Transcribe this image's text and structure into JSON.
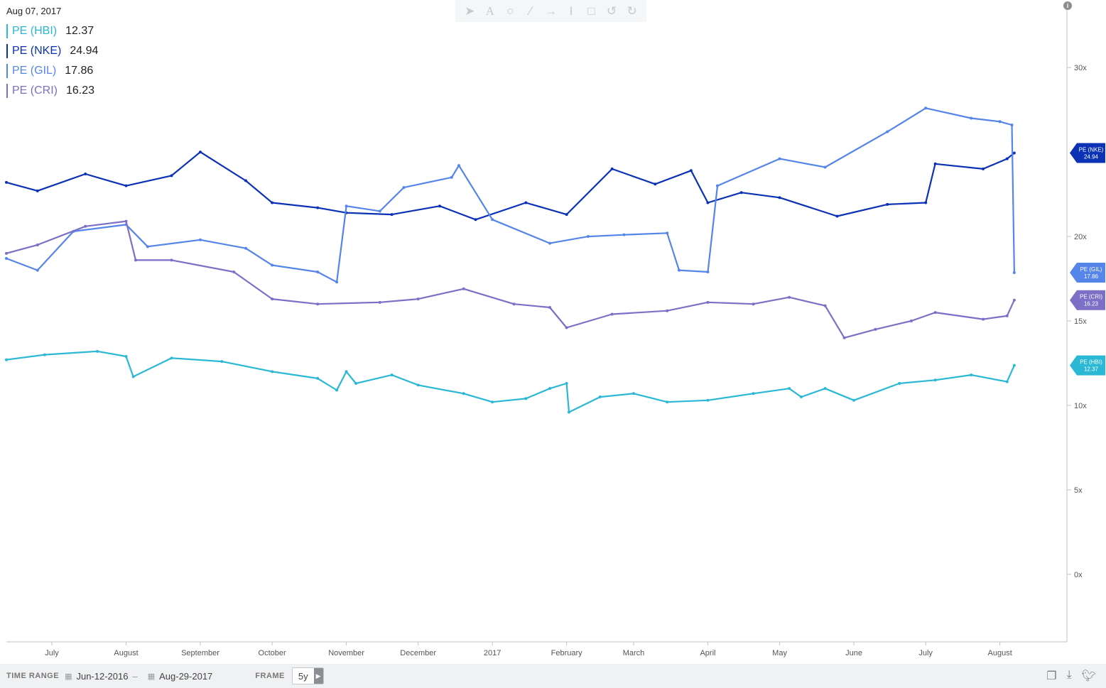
{
  "header": {
    "date": "Aug 07, 2017",
    "legend": [
      {
        "name": "PE (HBI)",
        "value": "12.37",
        "color": "#2ab8d4"
      },
      {
        "name": "PE (NKE)",
        "value": "24.94",
        "color": "#0b32b4"
      },
      {
        "name": "PE (GIL)",
        "value": "17.86",
        "color": "#5585e8"
      },
      {
        "name": "PE (CRI)",
        "value": "16.23",
        "color": "#7b6fc6"
      }
    ]
  },
  "toolbar": {
    "tools": [
      "pointer-icon",
      "text-icon",
      "circle-icon",
      "pencil-icon",
      "arrow-icon",
      "cursor-text-icon",
      "trash-icon",
      "undo-icon",
      "redo-icon"
    ],
    "info": "i"
  },
  "chart_data": {
    "type": "line",
    "x_axis": {
      "range": [
        "2016-06-12",
        "2017-08-29"
      ],
      "tick_labels": [
        "July",
        "August",
        "September",
        "October",
        "November",
        "December",
        "2017",
        "February",
        "March",
        "April",
        "May",
        "June",
        "July",
        "August"
      ]
    },
    "y_axis": {
      "range": [
        -4,
        34
      ],
      "ticks": [
        0,
        5,
        10,
        15,
        20,
        30
      ],
      "tick_labels": [
        "0x",
        "5x",
        "10x",
        "15x",
        "20x",
        "30x"
      ]
    },
    "grid": false,
    "legend_position": "top-left",
    "series": [
      {
        "name": "PE (HBI)",
        "color": "#2ab8d4",
        "end_value": "12.37",
        "points": [
          [
            "2016-06-12",
            12.7
          ],
          [
            "2016-06-28",
            13.0
          ],
          [
            "2016-07-20",
            13.2
          ],
          [
            "2016-08-01",
            12.9
          ],
          [
            "2016-08-04",
            11.7
          ],
          [
            "2016-08-20",
            12.8
          ],
          [
            "2016-09-10",
            12.6
          ],
          [
            "2016-10-01",
            12.0
          ],
          [
            "2016-10-20",
            11.6
          ],
          [
            "2016-10-28",
            10.9
          ],
          [
            "2016-11-01",
            12.0
          ],
          [
            "2016-11-05",
            11.3
          ],
          [
            "2016-11-20",
            11.8
          ],
          [
            "2016-12-01",
            11.2
          ],
          [
            "2016-12-20",
            10.7
          ],
          [
            "2017-01-01",
            10.2
          ],
          [
            "2017-01-15",
            10.4
          ],
          [
            "2017-01-25",
            11.0
          ],
          [
            "2017-02-01",
            11.3
          ],
          [
            "2017-02-02",
            9.6
          ],
          [
            "2017-02-15",
            10.5
          ],
          [
            "2017-03-01",
            10.7
          ],
          [
            "2017-03-15",
            10.2
          ],
          [
            "2017-04-01",
            10.3
          ],
          [
            "2017-04-20",
            10.7
          ],
          [
            "2017-05-05",
            11.0
          ],
          [
            "2017-05-10",
            10.5
          ],
          [
            "2017-05-20",
            11.0
          ],
          [
            "2017-06-01",
            10.3
          ],
          [
            "2017-06-20",
            11.3
          ],
          [
            "2017-07-05",
            11.5
          ],
          [
            "2017-07-20",
            11.8
          ],
          [
            "2017-08-04",
            11.4
          ],
          [
            "2017-08-07",
            12.37
          ]
        ]
      },
      {
        "name": "PE (NKE)",
        "color": "#0b32b4",
        "end_value": "24.94",
        "points": [
          [
            "2016-06-12",
            23.2
          ],
          [
            "2016-06-25",
            22.7
          ],
          [
            "2016-07-15",
            23.7
          ],
          [
            "2016-08-01",
            23.0
          ],
          [
            "2016-08-20",
            23.6
          ],
          [
            "2016-09-01",
            25.0
          ],
          [
            "2016-09-20",
            23.3
          ],
          [
            "2016-10-01",
            22.0
          ],
          [
            "2016-10-20",
            21.7
          ],
          [
            "2016-11-01",
            21.4
          ],
          [
            "2016-11-20",
            21.3
          ],
          [
            "2016-12-10",
            21.8
          ],
          [
            "2016-12-25",
            21.0
          ],
          [
            "2017-01-15",
            22.0
          ],
          [
            "2017-02-01",
            21.3
          ],
          [
            "2017-02-20",
            24.0
          ],
          [
            "2017-03-10",
            23.1
          ],
          [
            "2017-03-25",
            23.9
          ],
          [
            "2017-04-01",
            22.0
          ],
          [
            "2017-04-15",
            22.6
          ],
          [
            "2017-05-01",
            22.3
          ],
          [
            "2017-05-25",
            21.2
          ],
          [
            "2017-06-15",
            21.9
          ],
          [
            "2017-07-01",
            22.0
          ],
          [
            "2017-07-05",
            24.3
          ],
          [
            "2017-07-25",
            24.0
          ],
          [
            "2017-08-04",
            24.6
          ],
          [
            "2017-08-07",
            24.94
          ]
        ]
      },
      {
        "name": "PE (GIL)",
        "color": "#5585e8",
        "end_value": "17.86",
        "points": [
          [
            "2016-06-12",
            18.7
          ],
          [
            "2016-06-25",
            18.0
          ],
          [
            "2016-07-10",
            20.3
          ],
          [
            "2016-08-01",
            20.7
          ],
          [
            "2016-08-10",
            19.4
          ],
          [
            "2016-09-01",
            19.8
          ],
          [
            "2016-09-20",
            19.3
          ],
          [
            "2016-10-01",
            18.3
          ],
          [
            "2016-10-20",
            17.9
          ],
          [
            "2016-10-28",
            17.3
          ],
          [
            "2016-11-01",
            21.8
          ],
          [
            "2016-11-15",
            21.5
          ],
          [
            "2016-11-25",
            22.9
          ],
          [
            "2016-12-15",
            23.5
          ],
          [
            "2016-12-18",
            24.2
          ],
          [
            "2017-01-01",
            21.0
          ],
          [
            "2017-01-25",
            19.6
          ],
          [
            "2017-02-10",
            20.0
          ],
          [
            "2017-02-25",
            20.1
          ],
          [
            "2017-03-15",
            20.2
          ],
          [
            "2017-03-20",
            18.0
          ],
          [
            "2017-04-01",
            17.9
          ],
          [
            "2017-04-05",
            23.0
          ],
          [
            "2017-05-01",
            24.6
          ],
          [
            "2017-05-20",
            24.1
          ],
          [
            "2017-06-15",
            26.2
          ],
          [
            "2017-07-01",
            27.6
          ],
          [
            "2017-07-20",
            27.0
          ],
          [
            "2017-08-01",
            26.8
          ],
          [
            "2017-08-06",
            26.6
          ],
          [
            "2017-08-07",
            17.86
          ]
        ]
      },
      {
        "name": "PE (CRI)",
        "color": "#7b6fc6",
        "end_value": "16.23",
        "points": [
          [
            "2016-06-12",
            19.0
          ],
          [
            "2016-06-25",
            19.5
          ],
          [
            "2016-07-15",
            20.6
          ],
          [
            "2016-08-01",
            20.9
          ],
          [
            "2016-08-05",
            18.6
          ],
          [
            "2016-08-20",
            18.6
          ],
          [
            "2016-09-15",
            17.9
          ],
          [
            "2016-10-01",
            16.3
          ],
          [
            "2016-10-20",
            16.0
          ],
          [
            "2016-11-15",
            16.1
          ],
          [
            "2016-12-01",
            16.3
          ],
          [
            "2016-12-20",
            16.9
          ],
          [
            "2017-01-10",
            16.0
          ],
          [
            "2017-01-25",
            15.8
          ],
          [
            "2017-02-01",
            14.6
          ],
          [
            "2017-02-20",
            15.4
          ],
          [
            "2017-03-15",
            15.6
          ],
          [
            "2017-04-01",
            16.1
          ],
          [
            "2017-04-20",
            16.0
          ],
          [
            "2017-05-05",
            16.4
          ],
          [
            "2017-05-20",
            15.9
          ],
          [
            "2017-05-28",
            14.0
          ],
          [
            "2017-06-10",
            14.5
          ],
          [
            "2017-06-25",
            15.0
          ],
          [
            "2017-07-05",
            15.5
          ],
          [
            "2017-07-25",
            15.1
          ],
          [
            "2017-08-04",
            15.3
          ],
          [
            "2017-08-07",
            16.23
          ]
        ]
      }
    ]
  },
  "footer": {
    "time_range_label": "TIME RANGE",
    "start_date": "Jun-12-2016",
    "separator": "–",
    "end_date": "Aug-29-2017",
    "frame_label": "FRAME",
    "frame_value": "5y",
    "icons": [
      "copy-icon",
      "download-icon",
      "twitter-icon"
    ]
  }
}
